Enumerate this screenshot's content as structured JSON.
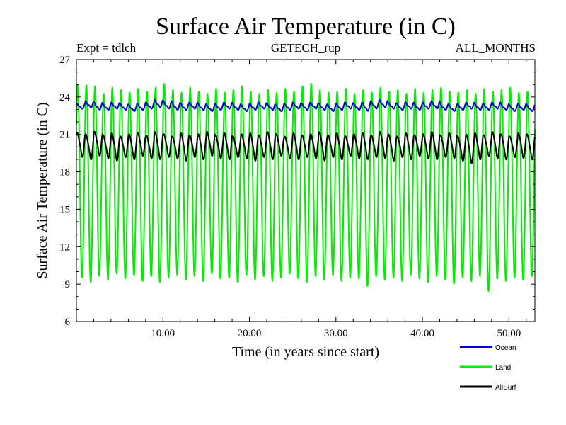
{
  "chart_data": {
    "type": "line",
    "title": "Surface Air Temperature (in C)",
    "expt_label": "Expt = tdlch",
    "subtitle": "GETECH_rup",
    "period_label": "ALL_MONTHS",
    "xlabel": "Time (in years since start)",
    "ylabel": "Surface Air Temperature (in C)",
    "xlim": [
      0,
      53
    ],
    "ylim": [
      6,
      27
    ],
    "x_ticks": [
      10,
      20,
      30,
      40,
      50
    ],
    "x_tick_labels": [
      "10.00",
      "20.00",
      "30.00",
      "40.00",
      "50.00"
    ],
    "y_ticks": [
      6,
      9,
      12,
      15,
      18,
      21,
      24,
      27
    ],
    "y_tick_labels": [
      "6",
      "9",
      "12",
      "15",
      "18",
      "21",
      "24",
      "27"
    ],
    "grid": false,
    "legend_position": "bottom-right",
    "series": [
      {
        "name": "Ocean",
        "color": "#0000cc",
        "description": "seasonal cycle, annual period",
        "mean": 23.2,
        "min_typical": 22.8,
        "max_typical": 23.7,
        "annual_max": [
          23.5,
          23.7,
          23.6,
          23.5,
          23.6,
          23.5,
          23.4,
          23.5,
          23.6,
          23.8,
          23.7,
          23.6,
          23.5,
          23.6,
          23.5,
          23.4,
          23.5,
          23.6,
          23.5,
          23.4,
          23.5,
          23.6,
          23.5,
          23.4,
          23.5,
          23.6,
          23.5,
          23.6,
          23.5,
          23.4,
          23.5,
          23.6,
          23.5,
          23.6,
          23.7,
          23.8,
          23.6,
          23.5,
          23.6,
          23.5,
          23.6,
          23.7,
          23.5,
          23.4,
          23.5,
          23.6,
          23.5,
          23.5,
          23.6,
          23.5,
          23.4,
          23.5,
          23.4
        ],
        "annual_min": [
          23.0,
          23.1,
          22.9,
          22.9,
          23.0,
          22.9,
          22.8,
          22.9,
          23.0,
          23.1,
          23.0,
          22.9,
          22.9,
          23.0,
          22.9,
          22.8,
          22.9,
          23.0,
          22.9,
          22.8,
          22.9,
          23.0,
          22.9,
          22.8,
          22.9,
          23.0,
          22.9,
          23.0,
          22.9,
          22.8,
          22.9,
          23.0,
          22.9,
          22.8,
          23.0,
          23.1,
          23.0,
          22.9,
          23.0,
          22.9,
          23.0,
          23.0,
          22.9,
          22.8,
          22.9,
          23.0,
          22.9,
          22.9,
          23.0,
          22.9,
          22.8,
          22.9,
          22.8
        ]
      },
      {
        "name": "Land",
        "color": "#00ee00",
        "description": "seasonal cycle, annual period, large amplitude",
        "mean": 17.0,
        "annual_max": [
          25.0,
          25.0,
          24.9,
          24.3,
          24.8,
          24.6,
          24.4,
          24.7,
          24.5,
          24.8,
          25.1,
          24.6,
          24.4,
          24.8,
          24.5,
          24.3,
          24.7,
          24.4,
          24.6,
          24.9,
          24.5,
          24.3,
          24.6,
          24.4,
          24.7,
          24.5,
          24.9,
          25.1,
          24.6,
          24.4,
          24.5,
          24.7,
          24.3,
          24.6,
          24.4,
          24.8,
          24.5,
          24.6,
          24.3,
          24.7,
          24.4,
          24.6,
          24.8,
          24.5,
          24.4,
          24.6,
          24.3,
          24.7,
          24.5,
          24.6,
          24.8,
          24.4,
          24.5
        ],
        "annual_min": [
          9.5,
          9.1,
          9.6,
          9.3,
          9.8,
          9.4,
          9.7,
          9.2,
          9.6,
          9.1,
          9.5,
          9.7,
          9.3,
          9.6,
          9.2,
          9.8,
          9.4,
          9.5,
          9.1,
          9.7,
          9.3,
          9.6,
          9.2,
          9.5,
          9.8,
          9.4,
          9.1,
          9.6,
          9.3,
          9.7,
          9.2,
          9.5,
          9.4,
          8.8,
          9.6,
          9.3,
          9.5,
          9.2,
          9.7,
          9.4,
          9.1,
          9.6,
          9.3,
          9.0,
          9.5,
          9.2,
          9.6,
          8.4,
          9.4,
          9.2,
          9.5,
          9.3,
          9.6
        ]
      },
      {
        "name": "AllSurf",
        "color": "#000000",
        "description": "seasonal cycle, annual period",
        "mean": 20.3,
        "annual_max": [
          21.3,
          21.2,
          21.4,
          21.1,
          21.3,
          21.0,
          21.2,
          21.3,
          21.1,
          21.4,
          21.2,
          21.0,
          21.3,
          21.1,
          21.2,
          21.4,
          21.1,
          21.3,
          21.0,
          21.2,
          21.3,
          21.1,
          21.4,
          21.2,
          21.0,
          21.3,
          21.1,
          21.2,
          21.4,
          21.1,
          21.3,
          21.0,
          21.2,
          21.3,
          21.1,
          21.4,
          21.2,
          21.0,
          21.3,
          21.1,
          21.2,
          21.4,
          21.1,
          21.3,
          21.0,
          21.2,
          21.3,
          21.1,
          21.4,
          21.2,
          21.0,
          21.3,
          21.2
        ],
        "annual_min": [
          19.1,
          18.9,
          19.2,
          19.0,
          18.8,
          19.1,
          18.9,
          19.2,
          19.0,
          18.9,
          19.1,
          19.0,
          18.8,
          19.1,
          18.9,
          19.2,
          19.0,
          18.9,
          19.1,
          19.0,
          18.8,
          19.1,
          18.9,
          19.2,
          19.0,
          18.9,
          19.1,
          19.0,
          18.8,
          19.1,
          18.9,
          19.2,
          19.0,
          18.9,
          19.1,
          19.0,
          18.8,
          19.1,
          18.9,
          19.2,
          19.0,
          18.9,
          19.1,
          19.0,
          18.8,
          18.6,
          18.9,
          19.2,
          19.0,
          18.9,
          19.1,
          19.0,
          18.9
        ]
      }
    ]
  }
}
